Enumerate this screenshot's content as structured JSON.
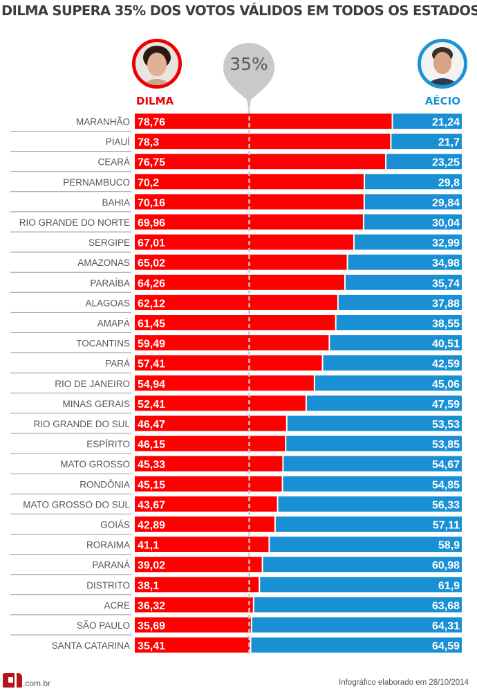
{
  "title": "DILMA SUPERA 35% DOS VOTOS VÁLIDOS EM TODOS OS ESTADOS",
  "candidates": {
    "left": {
      "name": "DILMA",
      "color": "#ff0000",
      "icon": "dilma-portrait-icon"
    },
    "right": {
      "name": "AÉCIO",
      "color": "#1a90d4",
      "icon": "aecio-portrait-icon"
    }
  },
  "threshold_label": "35%",
  "footer": {
    "logo_text": ".com.br",
    "credit": "Infográfico elaborado em 28/10/2014"
  },
  "chart_data": {
    "type": "bar",
    "orientation": "horizontal-stacked",
    "title": "DILMA SUPERA 35% DOS VOTOS VÁLIDOS EM TODOS OS ESTADOS",
    "xlabel": "",
    "ylabel": "",
    "xlim": [
      0,
      100
    ],
    "threshold": 35,
    "categories": [
      "MARANHÃO",
      "PIAUÍ",
      "CEARÁ",
      "PERNAMBUCO",
      "BAHIA",
      "RIO GRANDE DO NORTE",
      "SERGIPE",
      "AMAZONAS",
      "PARAÍBA",
      "ALAGOAS",
      "AMAPÁ",
      "TOCANTINS",
      "PARÁ",
      "RIO DE JANEIRO",
      "MINAS GERAIS",
      "RIO GRANDE DO SUL",
      "ESPÍRITO",
      "MATO GROSSO",
      "RONDÔNIA",
      "MATO GROSSO DO SUL",
      "GOIÁS",
      "RORAIMA",
      "PARANÁ",
      "DISTRITO",
      "ACRE",
      "SÃO PAULO",
      "SANTA CATARINA"
    ],
    "series": [
      {
        "name": "DILMA",
        "color": "#ff0000",
        "values": [
          78.76,
          78.3,
          76.75,
          70.2,
          70.16,
          69.96,
          67.01,
          65.02,
          64.26,
          62.12,
          61.45,
          59.49,
          57.41,
          54.94,
          52.41,
          46.47,
          46.15,
          45.33,
          45.15,
          43.67,
          42.89,
          41.1,
          39.02,
          38.1,
          36.32,
          35.69,
          35.41
        ],
        "labels": [
          "78,76",
          "78,3",
          "76,75",
          "70,2",
          "70,16",
          "69,96",
          "67,01",
          "65,02",
          "64,26",
          "62,12",
          "61,45",
          "59,49",
          "57,41",
          "54,94",
          "52,41",
          "46,47",
          "46,15",
          "45,33",
          "45,15",
          "43,67",
          "42,89",
          "41,1",
          "39,02",
          "38,1",
          "36,32",
          "35,69",
          "35,41"
        ]
      },
      {
        "name": "AÉCIO",
        "color": "#1a90d4",
        "values": [
          21.24,
          21.7,
          23.25,
          29.8,
          29.84,
          30.04,
          32.99,
          34.98,
          35.74,
          37.88,
          38.55,
          40.51,
          42.59,
          45.06,
          47.59,
          53.53,
          53.85,
          54.67,
          54.85,
          56.33,
          57.11,
          58.9,
          60.98,
          61.9,
          63.68,
          64.31,
          64.59
        ],
        "labels": [
          "21,24",
          "21,7",
          "23,25",
          "29,8",
          "29,84",
          "30,04",
          "32,99",
          "34,98",
          "35,74",
          "37,88",
          "38,55",
          "40,51",
          "42,59",
          "45,06",
          "47,59",
          "53,53",
          "53,85",
          "54,67",
          "54,85",
          "56,33",
          "57,11",
          "58,9",
          "60,98",
          "61,9",
          "63,68",
          "64,31",
          "64,59"
        ]
      }
    ],
    "grid": false,
    "legend": "top"
  }
}
